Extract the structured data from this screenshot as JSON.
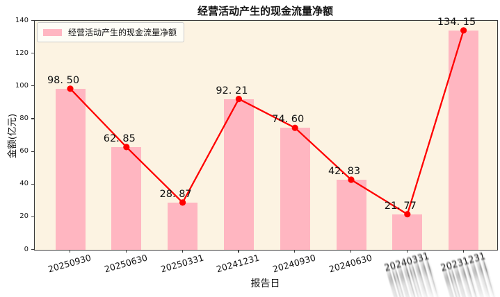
{
  "chart_data": {
    "type": "bar",
    "overlay_line": true,
    "title": "经营活动产生的现金流量净额",
    "legend": [
      "经营活动产生的现金流量净额"
    ],
    "legend_position": "upper left",
    "xlabel": "报告日",
    "ylabel": "金额(亿元)",
    "categories": [
      "20250930",
      "20250630",
      "20250331",
      "20241231",
      "20240930",
      "20240630",
      "20240331",
      "20231231"
    ],
    "values": [
      98.5,
      62.85,
      28.87,
      92.21,
      74.6,
      42.83,
      21.77,
      134.15
    ],
    "labels": [
      "98. 50",
      "62. 85",
      "28. 87",
      "92. 21",
      "74. 60",
      "42. 83",
      "21. 77",
      "134. 15"
    ],
    "ylim": [
      0,
      140
    ],
    "yticks": [
      0,
      20,
      40,
      60,
      80,
      100,
      120,
      140
    ],
    "grid": false,
    "glitched_tick_indices": [
      6,
      7
    ],
    "colors": {
      "bar": "#FFB6C1",
      "line": "#FF0000",
      "marker": "#FF0000",
      "plot_bg": "#FCF3E2",
      "figure_bg": "#FFFFFF",
      "text": "#111111"
    }
  }
}
